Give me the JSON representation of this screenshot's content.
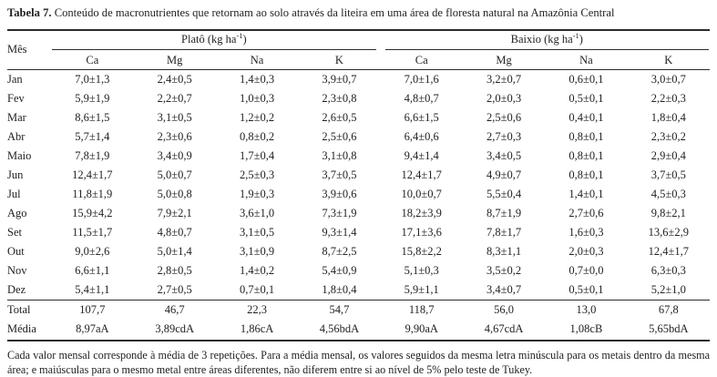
{
  "title": {
    "label": "Tabela 7.",
    "text": "Conteúdo de macronutrientes que retornam ao solo através da liteira em uma área de floresta natural na Amazônia Central"
  },
  "table": {
    "month_header": "Mês",
    "group_plato": {
      "prefix": "Platô (kg ha",
      "sup": "-1",
      "suffix": ")"
    },
    "group_baixio": {
      "prefix": "Baixio (kg ha",
      "sup": "-1",
      "suffix": ")"
    },
    "subheaders": [
      "Ca",
      "Mg",
      "Na",
      "K",
      "Ca",
      "Mg",
      "Na",
      "K"
    ],
    "rows": [
      {
        "month": "Jan",
        "values": [
          "7,0±1,3",
          "2,4±0,5",
          "1,4±0,3",
          "3,9±0,7",
          "7,0±1,6",
          "3,2±0,7",
          "0,6±0,1",
          "3,0±0,7"
        ]
      },
      {
        "month": "Fev",
        "values": [
          "5,9±1,9",
          "2,2±0,7",
          "1,0±0,3",
          "2,3±0,8",
          "4,8±0,7",
          "2,0±0,3",
          "0,5±0,1",
          "2,2±0,3"
        ]
      },
      {
        "month": "Mar",
        "values": [
          "8,6±1,5",
          "3,1±0,5",
          "1,2±0,2",
          "2,6±0,5",
          "6,6±1,5",
          "2,5±0,6",
          "0,4±0,1",
          "1,8±0,4"
        ]
      },
      {
        "month": "Abr",
        "values": [
          "5,7±1,4",
          "2,3±0,6",
          "0,8±0,2",
          "2,5±0,6",
          "6,4±0,6",
          "2,7±0,3",
          "0,8±0,1",
          "2,3±0,2"
        ]
      },
      {
        "month": "Maio",
        "values": [
          "7,8±1,9",
          "3,4±0,9",
          "1,7±0,4",
          "3,1±0,8",
          "9,4±1,4",
          "3,4±0,5",
          "0,8±0,1",
          "2,9±0,4"
        ]
      },
      {
        "month": "Jun",
        "values": [
          "12,4±1,7",
          "5,0±0,7",
          "2,5±0,3",
          "3,7±0,5",
          "12,4±1,7",
          "4,9±0,7",
          "0,8±0,1",
          "3,7±0,5"
        ]
      },
      {
        "month": "Jul",
        "values": [
          "11,8±1,9",
          "5,0±0,8",
          "1,9±0,3",
          "3,9±0,6",
          "10,0±0,7",
          "5,5±0,4",
          "1,4±0,1",
          "4,5±0,3"
        ]
      },
      {
        "month": "Ago",
        "values": [
          "15,9±4,2",
          "7,9±2,1",
          "3,6±1,0",
          "7,3±1,9",
          "18,2±3,9",
          "8,7±1,9",
          "2,7±0,6",
          "9,8±2,1"
        ]
      },
      {
        "month": "Set",
        "values": [
          "11,5±1,7",
          "4,8±0,7",
          "3,1±0,5",
          "9,3±1,4",
          "17,1±3,6",
          "7,8±1,7",
          "1,6±0,3",
          "13,6±2,9"
        ]
      },
      {
        "month": "Out",
        "values": [
          "9,0±2,6",
          "5,0±1,4",
          "3,1±0,9",
          "8,7±2,5",
          "15,8±2,2",
          "8,3±1,1",
          "2,0±0,3",
          "12,4±1,7"
        ]
      },
      {
        "month": "Nov",
        "values": [
          "6,6±1,1",
          "2,8±0,5",
          "1,4±0,2",
          "5,4±0,9",
          "5,1±0,3",
          "3,5±0,2",
          "0,7±0,0",
          "6,3±0,3"
        ]
      },
      {
        "month": "Dez",
        "values": [
          "5,4±1,1",
          "2,7±0,5",
          "0,7±0,1",
          "1,8±0,4",
          "5,9±1,1",
          "3,4±0,7",
          "0,5±0,1",
          "5,2±1,0"
        ]
      }
    ],
    "total": {
      "label": "Total",
      "values": [
        "107,7",
        "46,7",
        "22,3",
        "54,7",
        "118,7",
        "56,0",
        "13,0",
        "67,8"
      ]
    },
    "media": {
      "label": "Média",
      "values": [
        "8,97aA",
        "3,89cdA",
        "1,86cA",
        "4,56bdA",
        "9,90aA",
        "4,67cdA",
        "1,08cB",
        "5,65bdA"
      ]
    }
  },
  "footnote": "Cada valor mensal corresponde à média de 3 repetições. Para a média mensal, os valores seguidos da mesma letra minúscula para os metais dentro da mesma área; e maiúsculas para o mesmo metal entre áreas diferentes, não diferem entre si ao nível de 5% pelo teste de Tukey."
}
